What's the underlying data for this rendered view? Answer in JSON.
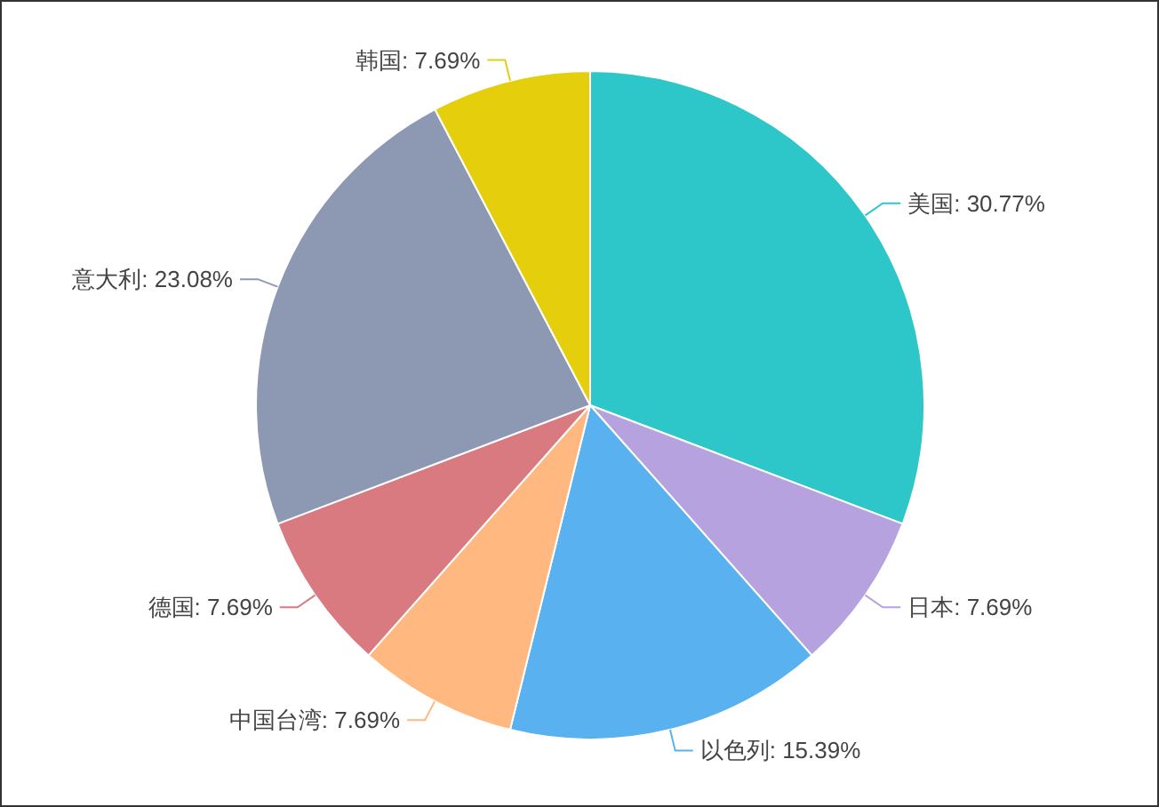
{
  "chart_data": {
    "type": "pie",
    "categories": [
      "美国",
      "日本",
      "以色列",
      "中国台湾",
      "德国",
      "意大利",
      "韩国"
    ],
    "values": [
      30.77,
      7.69,
      15.39,
      7.69,
      7.69,
      23.08,
      7.69
    ],
    "value_labels": [
      "30.77%",
      "7.69%",
      "15.39%",
      "7.69%",
      "7.69%",
      "23.08%",
      "7.69%"
    ],
    "colors": [
      "#2ec7c9",
      "#b6a2de",
      "#5ab1ef",
      "#ffb980",
      "#d87a80",
      "#8d98b3",
      "#e5cf0d"
    ]
  }
}
